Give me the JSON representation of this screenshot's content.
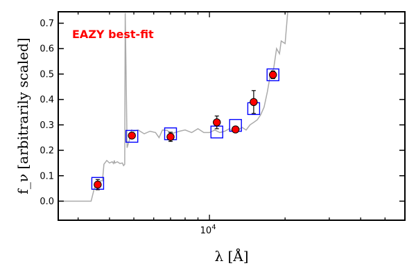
{
  "chart_data": {
    "type": "scatter",
    "title": "",
    "xlabel": "λ [Å]",
    "ylabel": "f_ν [arbitrarily scaled]",
    "xscale": "log",
    "xlim": [
      2500,
      60000
    ],
    "ylim": [
      -0.075,
      0.745
    ],
    "grid": false,
    "x_major_tick_labels": [
      {
        "value": 10000,
        "label": "10^4"
      }
    ],
    "y_ticks": [
      0.0,
      0.1,
      0.2,
      0.3,
      0.4,
      0.5,
      0.6,
      0.7
    ],
    "y_tick_labels": [
      "0.0",
      "0.1",
      "0.2",
      "0.3",
      "0.4",
      "0.5",
      "0.6",
      "0.7"
    ],
    "annotation": {
      "text": "EAZY best-fit",
      "color": "#ff0000",
      "placement": "top-left"
    },
    "series": [
      {
        "kind": "line",
        "color": "#aaaaaa",
        "x": [
          2500,
          3380,
          3500,
          3600,
          3680,
          3750,
          3800,
          3900,
          4000,
          4100,
          4150,
          4180,
          4200,
          4300,
          4400,
          4500,
          4550,
          4600,
          4620,
          4650,
          4700,
          4800,
          4900,
          5000,
          5200,
          5500,
          5800,
          6100,
          6300,
          6500,
          6800,
          7000,
          7300,
          7600,
          8000,
          8500,
          9000,
          9500,
          10000,
          10500,
          11000,
          11500,
          12000,
          12500,
          13000,
          13500,
          14000,
          14500,
          15000,
          15500,
          16000,
          16500,
          17000,
          17500,
          18000,
          18500,
          19000,
          19300,
          20000,
          20500,
          21000,
          21500,
          22000
        ],
        "y": [
          0.0,
          0.0,
          0.06,
          0.065,
          0.08,
          0.08,
          0.145,
          0.16,
          0.15,
          0.155,
          0.148,
          0.16,
          0.15,
          0.155,
          0.148,
          0.15,
          0.14,
          0.145,
          0.74,
          0.55,
          0.21,
          0.24,
          0.28,
          0.275,
          0.28,
          0.265,
          0.275,
          0.27,
          0.25,
          0.28,
          0.278,
          0.265,
          0.27,
          0.275,
          0.28,
          0.27,
          0.285,
          0.27,
          0.27,
          0.28,
          0.27,
          0.275,
          0.285,
          0.27,
          0.28,
          0.29,
          0.28,
          0.3,
          0.31,
          0.32,
          0.34,
          0.37,
          0.43,
          0.5,
          0.52,
          0.6,
          0.58,
          0.63,
          0.62,
          0.745,
          0.745,
          0.745,
          0.745
        ]
      },
      {
        "kind": "model-photometry",
        "marker": "square",
        "color": "#0000ff",
        "x": [
          3590,
          4910,
          7000,
          10700,
          12700,
          15000,
          17900
        ],
        "y": [
          0.07,
          0.255,
          0.265,
          0.272,
          0.298,
          0.364,
          0.497
        ]
      },
      {
        "kind": "observed-photometry",
        "marker": "circle",
        "color": "#ff0000",
        "x": [
          3590,
          4910,
          7000,
          10700,
          12700,
          15000,
          17900
        ],
        "y": [
          0.065,
          0.258,
          0.253,
          0.31,
          0.282,
          0.39,
          0.497
        ],
        "yerr": [
          0.02,
          0.01,
          0.018,
          0.025,
          0.012,
          0.045,
          0.015
        ]
      }
    ]
  }
}
